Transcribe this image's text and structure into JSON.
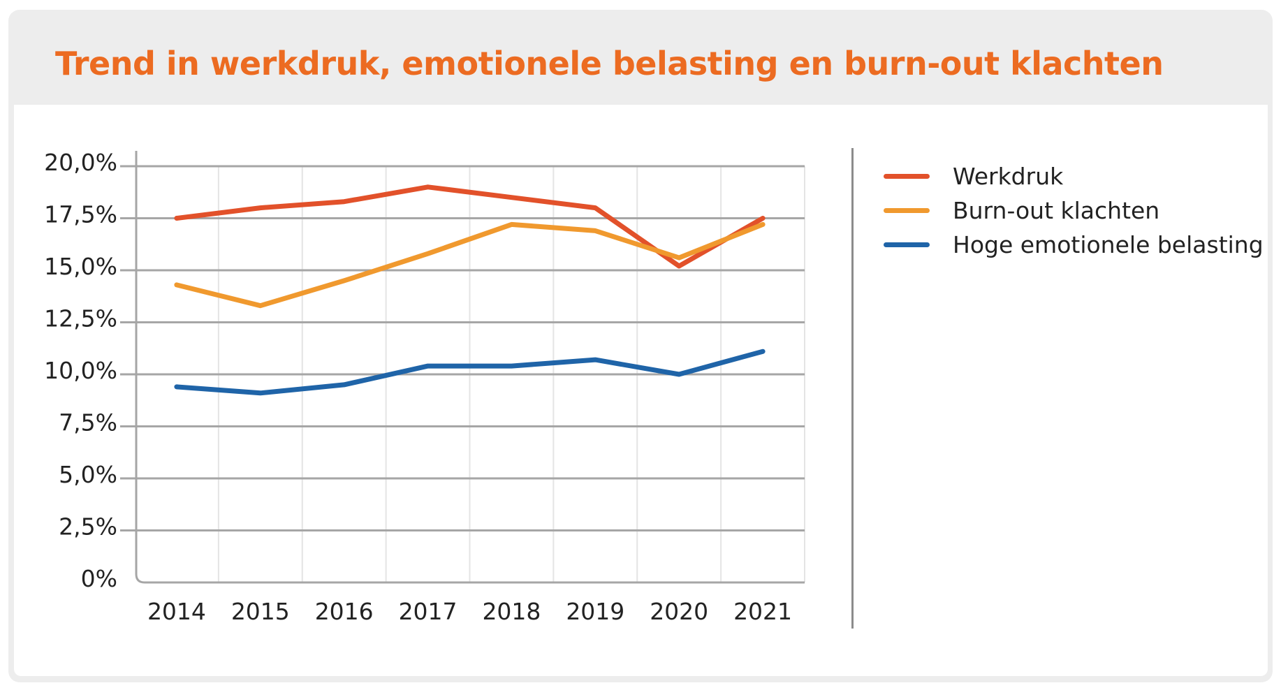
{
  "title": "Trend in werkdruk, emotionele belasting en burn-out klachten",
  "colors": {
    "title": "#ec6b21",
    "card_background": "#ededed",
    "gridline": "#a6a6a6",
    "minor_gridline": "#e4e4e4"
  },
  "legend": {
    "items": [
      {
        "label": "Werkdruk",
        "color": "#e2512a"
      },
      {
        "label": "Burn-out klachten",
        "color": "#f0992e"
      },
      {
        "label": "Hoge emotionele belasting",
        "color": "#1f64a8"
      }
    ]
  },
  "chart_data": {
    "type": "line",
    "title": "Trend in werkdruk, emotionele belasting en burn-out klachten",
    "xlabel": "",
    "ylabel": "",
    "categories": [
      "2014",
      "2015",
      "2016",
      "2017",
      "2018",
      "2019",
      "2020",
      "2021"
    ],
    "ylim": [
      0,
      20
    ],
    "yticks": [
      0,
      2.5,
      5,
      7.5,
      10,
      12.5,
      15,
      17.5,
      20
    ],
    "ytick_labels": [
      "0%",
      "2,5%",
      "5,0%",
      "7,5%",
      "10,0%",
      "12,5%",
      "15,0%",
      "17,5%",
      "20,0%"
    ],
    "grid": true,
    "legend_position": "right",
    "series": [
      {
        "name": "Werkdruk",
        "color": "#e2512a",
        "values": [
          17.5,
          18.0,
          18.3,
          19.0,
          18.5,
          18.0,
          15.2,
          17.5
        ]
      },
      {
        "name": "Burn-out klachten",
        "color": "#f0992e",
        "values": [
          14.3,
          13.3,
          14.5,
          15.8,
          17.2,
          16.9,
          15.6,
          17.2
        ]
      },
      {
        "name": "Hoge emotionele belasting",
        "color": "#1f64a8",
        "values": [
          9.4,
          9.1,
          9.5,
          10.4,
          10.4,
          10.7,
          10.0,
          11.1
        ]
      }
    ]
  }
}
